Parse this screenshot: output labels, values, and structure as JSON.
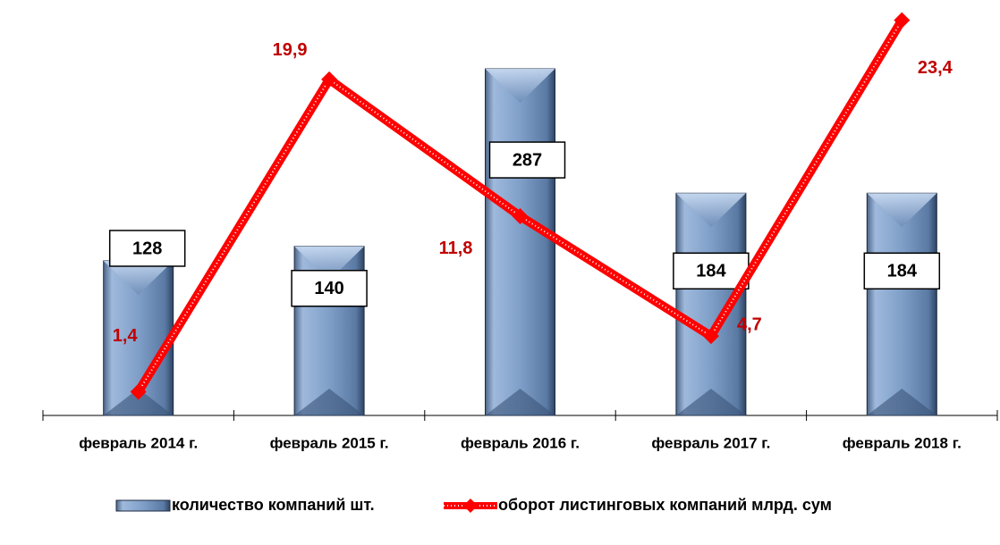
{
  "chart_data": {
    "type": "bar",
    "categories": [
      "февраль 2014 г.",
      "февраль 2015 г.",
      "февраль 2016 г.",
      "февраль 2017 г.",
      "февраль 2018 г."
    ],
    "series": [
      {
        "name": "количество компаний шт.",
        "type": "bar",
        "color": "#7f9fc8",
        "values": [
          128,
          140,
          287,
          184,
          184
        ]
      },
      {
        "name": "оборот листинговых компаний млрд. сум",
        "type": "line",
        "axis": "y2",
        "color": "#ff0000",
        "values": [
          1.4,
          19.9,
          11.8,
          4.7,
          23.4
        ],
        "value_labels": [
          "1,4",
          "19,9",
          "11,8",
          "4,7",
          "23,4"
        ]
      }
    ],
    "ylim": [
      0,
      344
    ],
    "y2lim": [
      0,
      24.6
    ],
    "legend": "bottom"
  }
}
